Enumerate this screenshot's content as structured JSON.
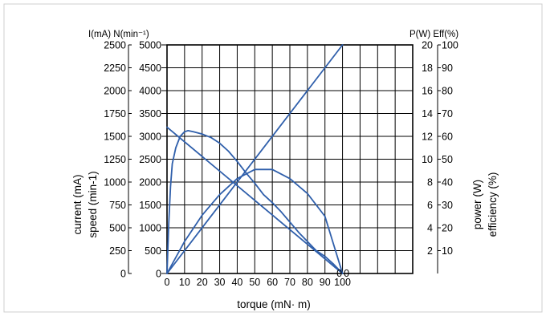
{
  "chart_data": {
    "type": "line",
    "title": "",
    "xlabel": "torque (mN· m)",
    "x_ticks": [
      "0",
      "10",
      "20",
      "30",
      "40",
      "50",
      "60",
      "70",
      "80",
      "90",
      "100"
    ],
    "xlim": [
      0,
      140
    ],
    "left_axes": [
      {
        "label": "current (mA)",
        "unit_header": "I(mA)",
        "ticks": [
          "2500",
          "2250",
          "2000",
          "1750",
          "1500",
          "1250",
          "1000",
          "750",
          "500",
          "250",
          "0"
        ],
        "ylim": [
          0,
          2500
        ]
      },
      {
        "label": "speed (min-1)",
        "unit_header": "N(min⁻¹)",
        "ticks": [
          "5000",
          "4500",
          "4000",
          "3500",
          "3000",
          "2500",
          "2000",
          "1500",
          "1000",
          "500",
          "0"
        ],
        "ylim": [
          0,
          5000
        ]
      }
    ],
    "right_axes": [
      {
        "label": "power (W)",
        "unit_header": "P(W)",
        "ticks": [
          "20",
          "18",
          "16",
          "14",
          "12",
          "10",
          "8",
          "6",
          "4",
          "2"
        ],
        "ylim": [
          0,
          20
        ]
      },
      {
        "label": "efficiency (%)",
        "unit_header": "Eff(%)",
        "ticks": [
          "100",
          "90",
          "80",
          "70",
          "60",
          "50",
          "40",
          "30",
          "20",
          "10"
        ],
        "ylim": [
          0,
          100
        ]
      }
    ],
    "end_labels": [
      "0",
      "0"
    ],
    "grid": true,
    "line_color": "#2f5fab",
    "series": [
      {
        "axis": "current",
        "x": [
          0,
          100
        ],
        "y": [
          0,
          2500
        ]
      },
      {
        "axis": "speed",
        "x": [
          0,
          100
        ],
        "y": [
          3200,
          0
        ]
      },
      {
        "axis": "power",
        "x": [
          0,
          10,
          20,
          30,
          40,
          50,
          60,
          70,
          80,
          90,
          100
        ],
        "y": [
          0,
          2.8,
          5.1,
          6.9,
          8.3,
          9.1,
          9.1,
          8.3,
          7.0,
          5.0,
          0
        ]
      },
      {
        "axis": "efficiency",
        "x": [
          0,
          1,
          2,
          3,
          5,
          7.5,
          10,
          12,
          15,
          20,
          25,
          30,
          35,
          40,
          45,
          50,
          55,
          60,
          65,
          70,
          75,
          80,
          85,
          90,
          95,
          100
        ],
        "y": [
          0,
          22,
          38,
          48,
          55,
          60,
          62,
          62.5,
          62,
          61,
          59.5,
          57,
          53.5,
          49,
          44,
          39.5,
          34.5,
          31,
          27,
          22.5,
          18,
          14,
          10,
          7.5,
          4,
          0
        ]
      }
    ]
  }
}
